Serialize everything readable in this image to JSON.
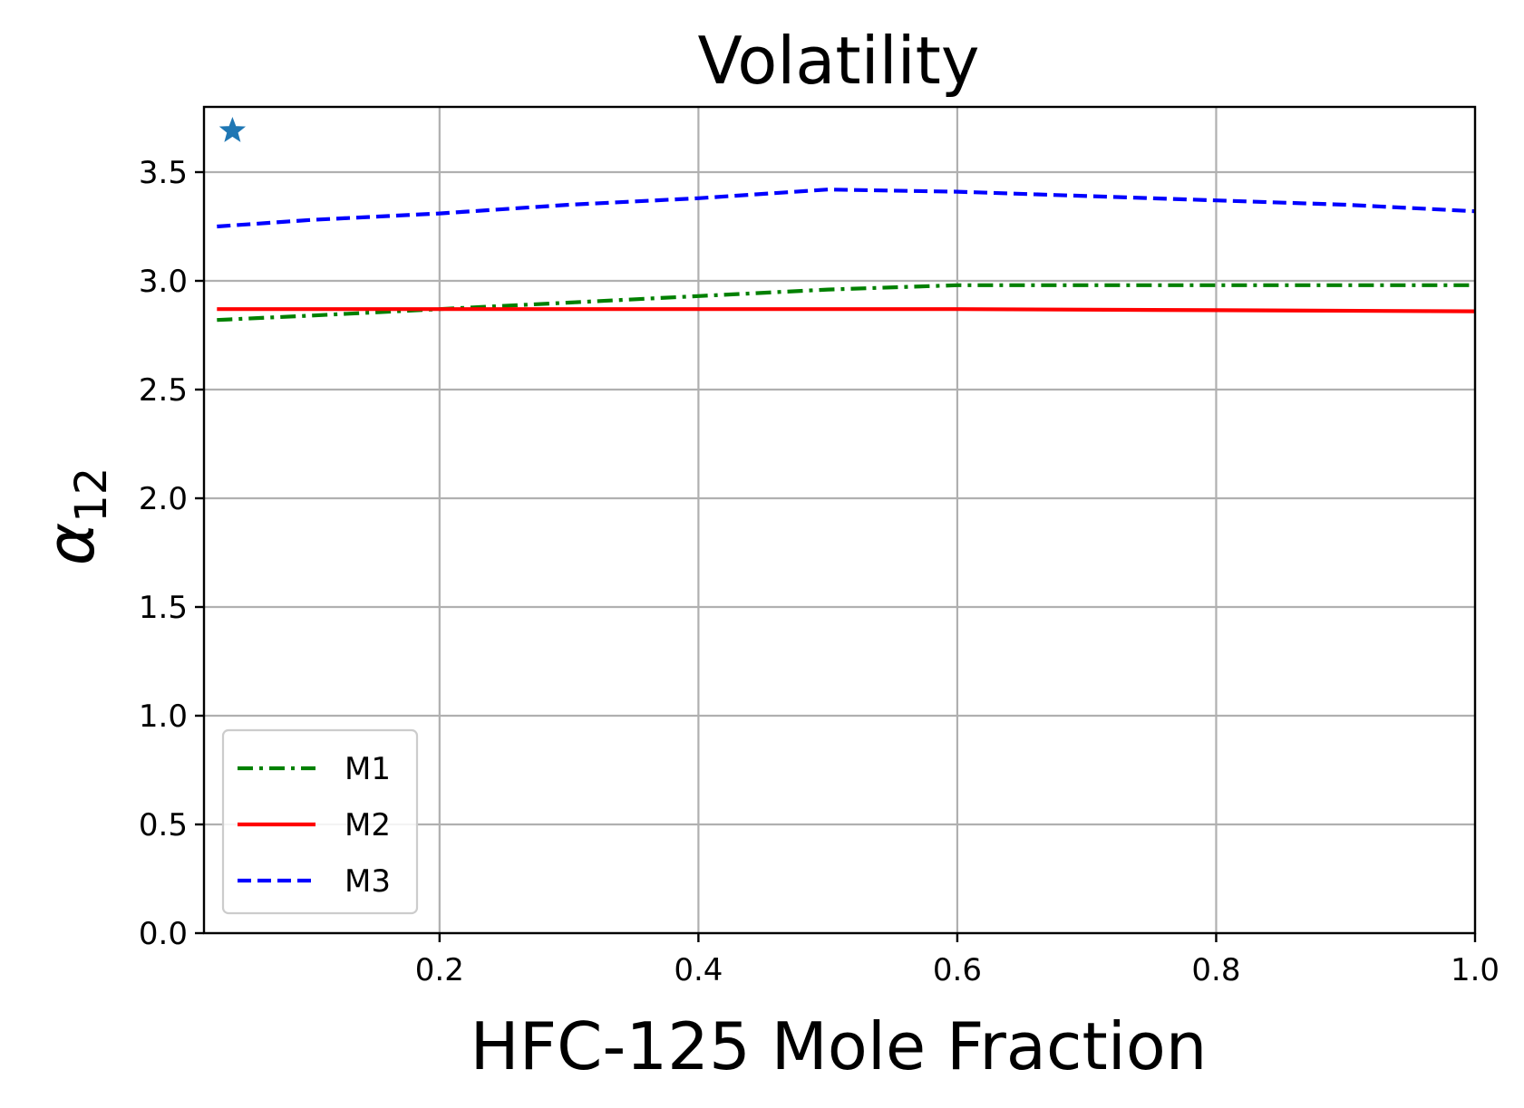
{
  "chart_data": {
    "type": "line",
    "title": "Volatility",
    "xlabel": "HFC-125 Mole Fraction",
    "ylabel_base": "α",
    "ylabel_sub": "12",
    "xlim": [
      0.018,
      1.0
    ],
    "ylim": [
      0.0,
      3.8
    ],
    "xticks": [
      {
        "value": 0.2,
        "label": "0.2"
      },
      {
        "value": 0.4,
        "label": "0.4"
      },
      {
        "value": 0.6,
        "label": "0.6"
      },
      {
        "value": 0.8,
        "label": "0.8"
      },
      {
        "value": 1.0,
        "label": "1.0"
      }
    ],
    "yticks": [
      {
        "value": 0.0,
        "label": "0.0"
      },
      {
        "value": 0.5,
        "label": "0.5"
      },
      {
        "value": 1.0,
        "label": "1.0"
      },
      {
        "value": 1.5,
        "label": "1.5"
      },
      {
        "value": 2.0,
        "label": "2.0"
      },
      {
        "value": 2.5,
        "label": "2.5"
      },
      {
        "value": 3.0,
        "label": "3.0"
      },
      {
        "value": 3.5,
        "label": "3.5"
      }
    ],
    "grid": true,
    "legend_position": "lower-left",
    "series": [
      {
        "name": "M1",
        "color": "#008000",
        "style": "dashdot",
        "x": [
          0.028,
          0.1,
          0.2,
          0.3,
          0.4,
          0.5,
          0.6,
          0.7,
          0.8,
          0.9,
          1.0
        ],
        "y": [
          2.82,
          2.84,
          2.87,
          2.9,
          2.93,
          2.96,
          2.98,
          2.98,
          2.98,
          2.98,
          2.98
        ]
      },
      {
        "name": "M2",
        "color": "#ff0000",
        "style": "solid",
        "x": [
          0.028,
          0.2,
          0.4,
          0.6,
          0.8,
          1.0
        ],
        "y": [
          2.87,
          2.87,
          2.87,
          2.87,
          2.865,
          2.86
        ]
      },
      {
        "name": "M3",
        "color": "#0000ff",
        "style": "dashed",
        "x": [
          0.028,
          0.1,
          0.2,
          0.3,
          0.4,
          0.5,
          0.6,
          0.7,
          0.8,
          0.9,
          1.0
        ],
        "y": [
          3.25,
          3.28,
          3.31,
          3.35,
          3.38,
          3.42,
          3.41,
          3.39,
          3.37,
          3.35,
          3.32
        ]
      }
    ],
    "markers": [
      {
        "x": 0.04,
        "y": 3.69,
        "symbol": "star",
        "color": "#1f77b4"
      }
    ]
  }
}
